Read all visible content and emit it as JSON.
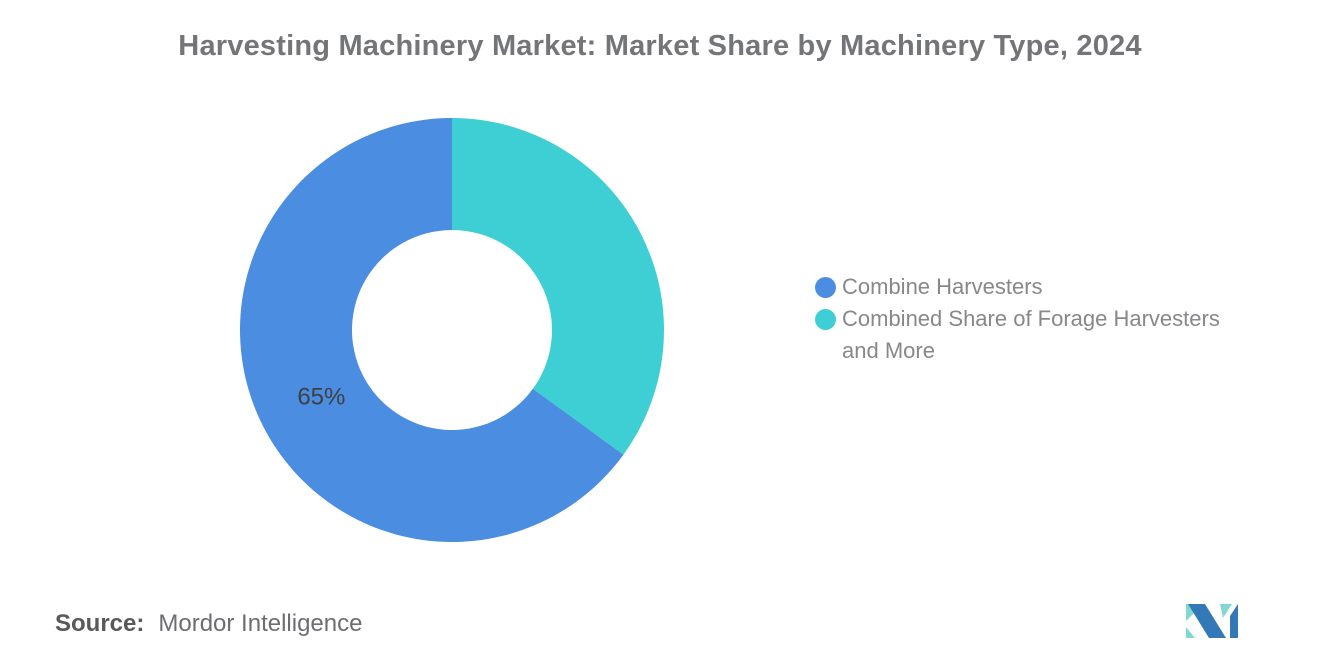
{
  "header": {
    "title": "Harvesting Machinery Market: Market Share by Machinery Type, 2024"
  },
  "chart_data": {
    "type": "pie",
    "donut": true,
    "title": "Harvesting Machinery Market: Market Share by Machinery Type, 2024",
    "series": [
      {
        "name": "Combine Harvesters",
        "value": 65,
        "color": "#4A8DE1",
        "label": "65%"
      },
      {
        "name": "Combined Share of Forage Harvesters and More",
        "value": 35,
        "color": "#3ECFD4",
        "label": ""
      }
    ],
    "start_angle_deg": 126,
    "inner_radius_ratio": 0.47,
    "legend_position": "right",
    "label_color": "#404040",
    "background": "#ffffff"
  },
  "footer": {
    "source_label": "Source:",
    "source_value": "Mordor Intelligence",
    "logo": "mordor-intelligence-logo",
    "logo_colors": {
      "blue": "#3379B7",
      "teal": "#82D7D3"
    }
  }
}
